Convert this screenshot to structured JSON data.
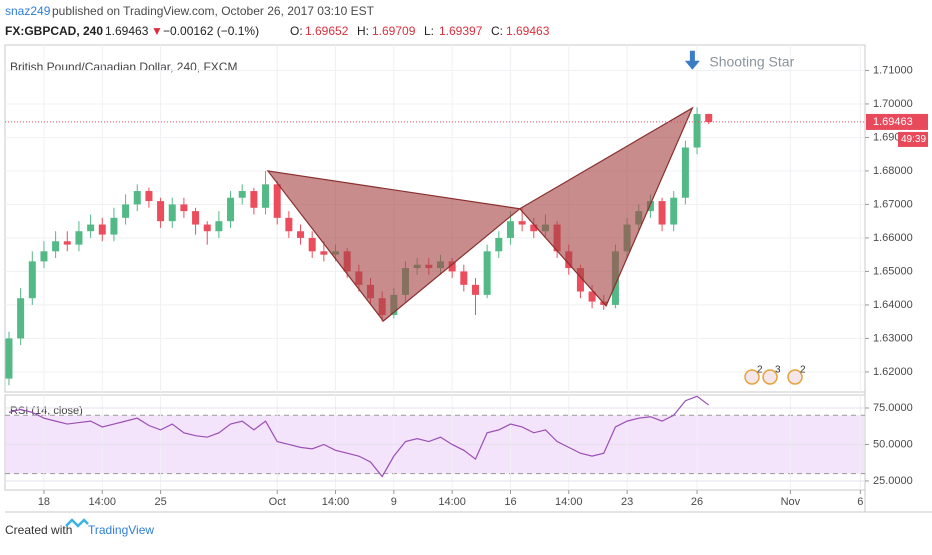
{
  "header": {
    "user": "snaz249",
    "published": "published on TradingView.com, October 26, 2017 03:10 EST",
    "symbol": "FX:GBPCAD, 240",
    "last": "1.69463",
    "direction": "▼",
    "change": "−0.00162 (−0.1%)",
    "ohlc": [
      {
        "label": "O:",
        "value": "1.69652"
      },
      {
        "label": "H:",
        "value": "1.69709"
      },
      {
        "label": "L:",
        "value": "1.69397"
      },
      {
        "label": "C:",
        "value": "1.69463"
      }
    ]
  },
  "chart_data": [
    {
      "type": "candlestick",
      "title": "British Pound/Canadian Dollar, 240, FXCM",
      "x": [
        -1.5,
        -1,
        -0.5,
        0,
        0.5,
        1,
        1.5,
        2,
        2.5,
        3,
        3.5,
        4,
        4.5,
        5,
        5.5,
        6,
        6.5,
        7,
        7.5,
        8,
        8.5,
        9,
        9.5,
        10,
        10.5,
        11,
        11.5,
        12,
        12.5,
        13,
        13.5,
        14,
        14.5,
        15,
        15.5,
        16,
        16.5,
        17,
        17.5,
        18,
        18.5,
        19,
        19.5,
        20,
        20.5,
        21,
        21.5,
        22,
        22.5,
        23,
        23.5,
        24,
        24.5,
        25,
        25.5,
        26,
        26.5,
        27,
        27.5,
        28,
        28.5
      ],
      "open": [
        1.618,
        1.63,
        1.642,
        1.653,
        1.656,
        1.659,
        1.658,
        1.662,
        1.664,
        1.661,
        1.666,
        1.67,
        1.674,
        1.671,
        1.665,
        1.67,
        1.668,
        1.664,
        1.662,
        1.665,
        1.672,
        1.674,
        1.669,
        1.676,
        1.666,
        1.662,
        1.66,
        1.656,
        1.655,
        1.656,
        1.65,
        1.646,
        1.642,
        1.637,
        1.643,
        1.651,
        1.652,
        1.651,
        1.653,
        1.65,
        1.646,
        1.643,
        1.656,
        1.66,
        1.665,
        1.664,
        1.662,
        1.664,
        1.656,
        1.651,
        1.644,
        1.641,
        1.64,
        1.656,
        1.664,
        1.668,
        1.671,
        1.664,
        1.672,
        1.687,
        1.697
      ],
      "high": [
        1.632,
        1.645,
        1.656,
        1.659,
        1.662,
        1.662,
        1.665,
        1.667,
        1.666,
        1.669,
        1.673,
        1.676,
        1.675,
        1.672,
        1.672,
        1.672,
        1.669,
        1.665,
        1.668,
        1.674,
        1.676,
        1.675,
        1.68,
        1.677,
        1.668,
        1.664,
        1.662,
        1.659,
        1.658,
        1.657,
        1.652,
        1.648,
        1.644,
        1.645,
        1.653,
        1.654,
        1.654,
        1.655,
        1.654,
        1.652,
        1.648,
        1.658,
        1.662,
        1.668,
        1.669,
        1.666,
        1.667,
        1.665,
        1.658,
        1.652,
        1.646,
        1.643,
        1.658,
        1.666,
        1.67,
        1.673,
        1.672,
        1.674,
        1.689,
        1.699,
        1.6971
      ],
      "low": [
        1.616,
        1.628,
        1.64,
        1.651,
        1.654,
        1.656,
        1.656,
        1.66,
        1.659,
        1.659,
        1.664,
        1.668,
        1.669,
        1.663,
        1.663,
        1.666,
        1.661,
        1.658,
        1.66,
        1.663,
        1.67,
        1.667,
        1.667,
        1.664,
        1.66,
        1.658,
        1.654,
        1.653,
        1.653,
        1.648,
        1.644,
        1.64,
        1.635,
        1.636,
        1.641,
        1.649,
        1.649,
        1.649,
        1.648,
        1.644,
        1.637,
        1.642,
        1.654,
        1.658,
        1.662,
        1.66,
        1.66,
        1.654,
        1.649,
        1.642,
        1.639,
        1.6385,
        1.639,
        1.654,
        1.662,
        1.666,
        1.662,
        1.662,
        1.67,
        1.685,
        1.694
      ],
      "close": [
        1.63,
        1.642,
        1.653,
        1.656,
        1.659,
        1.658,
        1.662,
        1.664,
        1.661,
        1.666,
        1.67,
        1.674,
        1.671,
        1.665,
        1.67,
        1.668,
        1.664,
        1.662,
        1.665,
        1.672,
        1.674,
        1.669,
        1.676,
        1.666,
        1.662,
        1.66,
        1.656,
        1.655,
        1.656,
        1.65,
        1.646,
        1.642,
        1.637,
        1.643,
        1.651,
        1.652,
        1.651,
        1.653,
        1.65,
        1.646,
        1.643,
        1.656,
        1.66,
        1.665,
        1.664,
        1.662,
        1.664,
        1.656,
        1.651,
        1.644,
        1.641,
        1.64,
        1.656,
        1.664,
        1.668,
        1.671,
        1.664,
        1.672,
        1.687,
        1.697,
        1.6946
      ],
      "up_color": "#53b987",
      "down_color": "#eb4d5c",
      "xlim": [
        -1.67,
        35.2
      ],
      "xticks": [
        {
          "value": 0,
          "label": "18"
        },
        {
          "value": 2.5,
          "label": "14:00"
        },
        {
          "value": 5,
          "label": "25"
        },
        {
          "value": 10,
          "label": "Oct"
        },
        {
          "value": 12.5,
          "label": "14:00"
        },
        {
          "value": 15,
          "label": "9"
        },
        {
          "value": 17.5,
          "label": "14:00"
        },
        {
          "value": 20,
          "label": "16"
        },
        {
          "value": 22.5,
          "label": "14:00"
        },
        {
          "value": 25,
          "label": "23"
        },
        {
          "value": 28,
          "label": "26"
        },
        {
          "value": 32,
          "label": "Nov"
        },
        {
          "value": 35,
          "label": "6"
        }
      ],
      "ylim": [
        1.614,
        1.7176
      ],
      "yticks": [
        {
          "value": 1.71,
          "label": "1.71000"
        },
        {
          "value": 1.7,
          "label": "1.70000"
        },
        {
          "value": 1.69,
          "label": "1.69000"
        },
        {
          "value": 1.68,
          "label": "1.68000"
        },
        {
          "value": 1.67,
          "label": "1.67000"
        },
        {
          "value": 1.66,
          "label": "1.66000"
        },
        {
          "value": 1.65,
          "label": "1.65000"
        },
        {
          "value": 1.64,
          "label": "1.64000"
        },
        {
          "value": 1.63,
          "label": "1.63000"
        },
        {
          "value": 1.62,
          "label": "1.62000"
        }
      ],
      "grid": true,
      "last_price": {
        "value": 1.69463,
        "label": "1.69463",
        "color": "#e84a5c"
      },
      "countdown": "49:39",
      "pattern": {
        "fill": "#a64646",
        "stroke": "#8a2f2f",
        "x": [
          9.6,
          14.55,
          20.4,
          24.1,
          27.8
        ],
        "y": [
          1.68,
          1.6352,
          1.6687,
          1.6397,
          1.6988
        ]
      },
      "annotation": {
        "text": "Shooting Star",
        "x": 27.8,
        "y": 1.7105,
        "color": "#3b7dc4"
      },
      "events": [
        "2",
        "3",
        "2"
      ]
    },
    {
      "type": "line",
      "title": "RSI (14, close)",
      "color": "#9a4fb4",
      "x": [
        -1.5,
        -1,
        -0.5,
        0,
        0.5,
        1,
        1.5,
        2,
        2.5,
        3,
        3.5,
        4,
        4.5,
        5,
        5.5,
        6,
        6.5,
        7,
        7.5,
        8,
        8.5,
        9,
        9.5,
        10,
        10.5,
        11,
        11.5,
        12,
        12.5,
        13,
        13.5,
        14,
        14.5,
        15,
        15.5,
        16,
        16.5,
        17,
        17.5,
        18,
        18.5,
        19,
        19.5,
        20,
        20.5,
        21,
        21.5,
        22,
        22.5,
        23,
        23.5,
        24,
        24.5,
        25,
        25.5,
        26,
        26.5,
        27,
        27.5,
        28,
        28.5
      ],
      "values": [
        72,
        74,
        72,
        68,
        66,
        64,
        65,
        66,
        62,
        64,
        66,
        68,
        63,
        60,
        64,
        58,
        56,
        55,
        58,
        64,
        66,
        60,
        66,
        52,
        50,
        48,
        47,
        50,
        46,
        44,
        42,
        38,
        28,
        42,
        52,
        54,
        52,
        55,
        50,
        46,
        40,
        58,
        60,
        64,
        62,
        58,
        60,
        52,
        48,
        44,
        42,
        44,
        62,
        66,
        68,
        69,
        66,
        70,
        80,
        83,
        77
      ],
      "band": [
        30,
        70
      ],
      "band_color": "#f3e4fb",
      "ylim": [
        18.8,
        83.9
      ],
      "yticks": [
        {
          "value": 75,
          "label": "75.0000"
        },
        {
          "value": 50,
          "label": "50.0000"
        },
        {
          "value": 25,
          "label": "25.0000"
        }
      ]
    }
  ],
  "footer": {
    "created": "Created with",
    "brand": "TradingView"
  }
}
